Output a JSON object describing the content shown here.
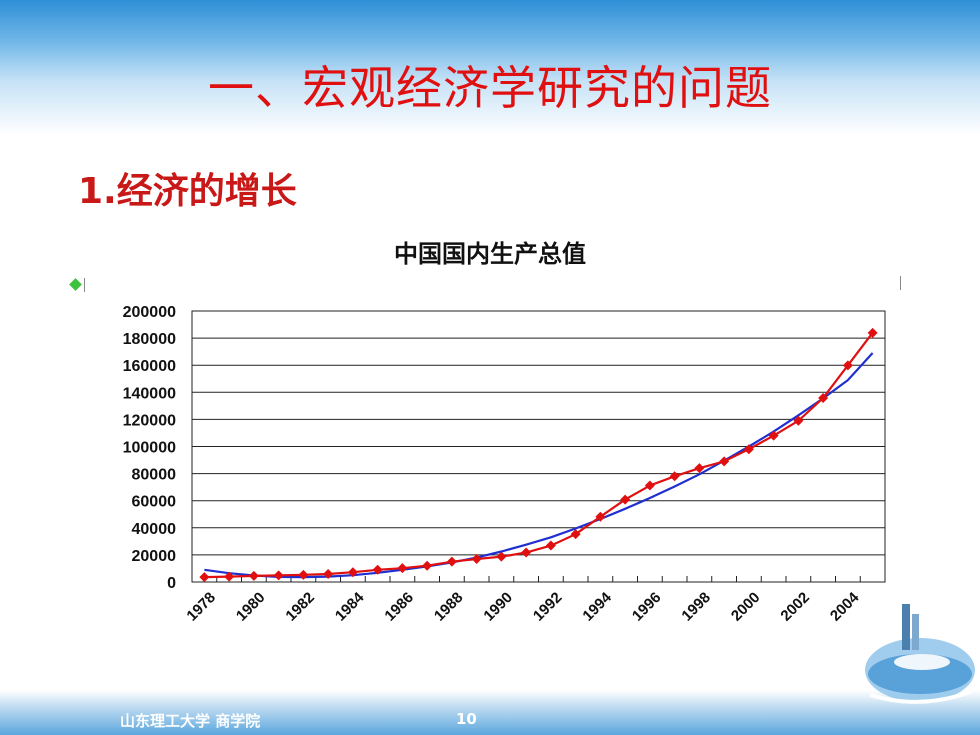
{
  "slide": {
    "title": "一、宏观经济学研究的问题",
    "subheading": "1.经济的增长"
  },
  "footer": {
    "school": "山东理工大学 商学院",
    "page": "10"
  },
  "colors": {
    "title": "#e01010",
    "data_series": "#e01010",
    "trend_line": "#1f2fd0",
    "legend_marker": "#3cc23c"
  },
  "chart_data": {
    "type": "line",
    "title": "中国国内生产总值",
    "xlabel": "",
    "ylabel": "",
    "ylim": [
      0,
      200000
    ],
    "y_ticks": [
      "0",
      "20000",
      "40000",
      "60000",
      "80000",
      "100000",
      "120000",
      "140000",
      "160000",
      "180000",
      "200000"
    ],
    "x_tick_labels": [
      "1978",
      "1980",
      "1982",
      "1984",
      "1986",
      "1988",
      "1990",
      "1992",
      "1994",
      "1996",
      "1998",
      "2000",
      "2002",
      "2004"
    ],
    "grid": "horizontal",
    "series": [
      {
        "x": [
          1978,
          1979,
          1980,
          1981,
          1982,
          1983,
          1984,
          1985,
          1986,
          1987,
          1988,
          1989,
          1990,
          1991,
          1992,
          1993,
          1994,
          1995,
          1996,
          1997,
          1998,
          1999,
          2000,
          2001,
          2002,
          2003,
          2004,
          2005
        ],
        "values": [
          3600,
          4000,
          4500,
          4900,
          5300,
          5900,
          7200,
          9000,
          10200,
          12000,
          15000,
          17000,
          18700,
          21800,
          26900,
          35300,
          48200,
          60800,
          71200,
          78000,
          84000,
          89000,
          98000,
          108000,
          119000,
          135800,
          159900,
          183900
        ],
        "marker": "diamond"
      },
      {
        "x": [
          1978,
          1979,
          1980,
          1981,
          1982,
          1983,
          1984,
          1985,
          1986,
          1987,
          1988,
          1989,
          1990,
          1991,
          1992,
          1993,
          1994,
          1995,
          1996,
          1997,
          1998,
          1999,
          2000,
          2001,
          2002,
          2003,
          2004,
          2005
        ],
        "values": [
          9000,
          6500,
          4800,
          3800,
          3600,
          4000,
          5000,
          6800,
          9000,
          11500,
          14500,
          18000,
          22500,
          27500,
          33000,
          39500,
          46500,
          54000,
          62000,
          70500,
          79500,
          89500,
          100000,
          111000,
          123000,
          135500,
          149000,
          169000
        ],
        "marker": "none"
      }
    ]
  }
}
